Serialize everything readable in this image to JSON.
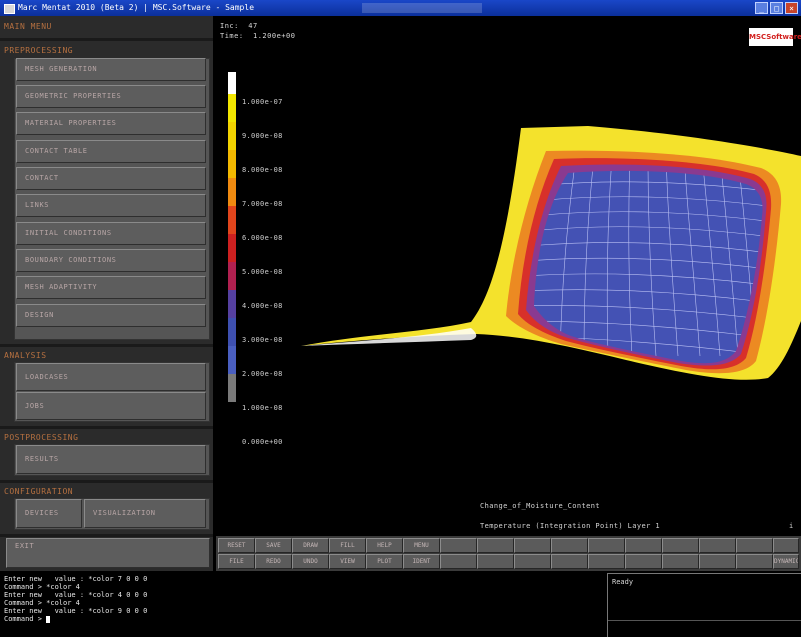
{
  "window": {
    "title": "Marc Mentat 2010 (Beta 2) | MSC.Software - Sample",
    "controls": [
      "minimize",
      "maximize",
      "close"
    ]
  },
  "sidebar": {
    "main_menu_label": "MAIN MENU",
    "preprocessing": {
      "title": "PREPROCESSING",
      "items": [
        "MESH GENERATION",
        "GEOMETRIC PROPERTIES",
        "MATERIAL PROPERTIES",
        "CONTACT TABLE",
        "CONTACT",
        "LINKS",
        "INITIAL CONDITIONS",
        "BOUNDARY CONDITIONS",
        "MESH ADAPTIVITY",
        "DESIGN"
      ]
    },
    "analysis": {
      "title": "ANALYSIS",
      "items": [
        "LOADCASES",
        "JOBS"
      ]
    },
    "postprocessing": {
      "title": "POSTPROCESSING",
      "items": [
        "RESULTS"
      ]
    },
    "configuration": {
      "title": "CONFIGURATION",
      "items": [
        "DEVICES",
        "VISUALIZATION"
      ]
    },
    "exit_label": "EXIT"
  },
  "viewport": {
    "inc_label": "Inc:  47",
    "time_label": "Time:  1.200e+00",
    "logo_text": "MSCSoftware",
    "legend": {
      "labels": [
        "1.000e-07",
        "9.000e-08",
        "8.000e-08",
        "7.000e-08",
        "6.000e-08",
        "5.000e-08",
        "4.000e-08",
        "3.000e-08",
        "2.000e-08",
        "1.000e-08",
        "0.000e+00"
      ],
      "colors": [
        "#ffffff",
        "#f2e600",
        "#f2d300",
        "#f2b800",
        "#ef8a10",
        "#e0451c",
        "#cc2020",
        "#b02050",
        "#5540a0",
        "#3e50b0",
        "#4a5fc0",
        "#7a7a7a"
      ]
    },
    "caption_result": "Change_of_Moisture_Content",
    "caption_footer": "Temperature (Integration Point) Layer 1",
    "footer_glyph": "i",
    "colors": {
      "outer": "#f4e22c",
      "band1": "#ec8a22",
      "band2": "#d8302a",
      "band3": "#8a3a90",
      "inner": "#4452b4",
      "grid": "#cfd4ff"
    }
  },
  "toolbar": {
    "row1": [
      "RESET",
      "SAVE",
      "DRAW",
      "FILL",
      "HELP",
      "MENU",
      "",
      "",
      "",
      "",
      "",
      "",
      "",
      "",
      "",
      ""
    ],
    "row2": [
      "FILE",
      "REDO",
      "UNDO",
      "VIEW",
      "PLOT",
      "IDENT",
      "",
      "",
      "",
      "",
      "",
      "",
      "",
      "",
      "",
      "DYNAMIC/SELECT"
    ]
  },
  "console": {
    "lines": [
      "Enter new   value : *color 7 0 0 0",
      "Command > *color 4",
      "Enter new   value : *color 4 0 0 0",
      "Command > *color 4",
      "Enter new   value : *color 9 0 0 0",
      "Command > "
    ]
  },
  "status": {
    "text": "Ready"
  }
}
